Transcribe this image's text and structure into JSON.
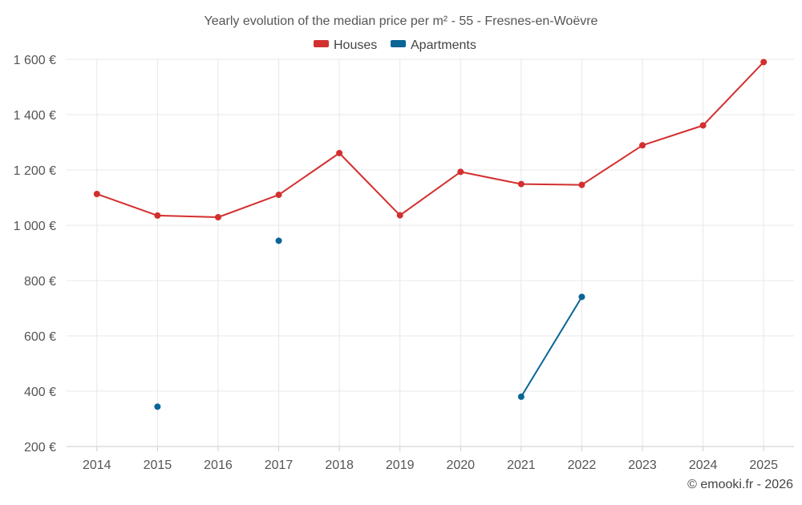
{
  "chart_data": {
    "type": "line",
    "title": "Yearly evolution of the median price per m² - 55 - Fresnes-en-Woëvre",
    "categories": [
      "2014",
      "2015",
      "2016",
      "2017",
      "2018",
      "2019",
      "2020",
      "2021",
      "2022",
      "2023",
      "2024",
      "2025"
    ],
    "ylim": [
      200,
      1600
    ],
    "yticks": [
      200,
      400,
      600,
      800,
      1000,
      1200,
      1400,
      1600
    ],
    "ytick_labels": [
      "200 €",
      "400 €",
      "600 €",
      "800 €",
      "1 000 €",
      "1 200 €",
      "1 400 €",
      "1 600 €"
    ],
    "xlabel": "",
    "ylabel": "",
    "grid": true,
    "legend_position": "top-center",
    "series": [
      {
        "name": "Houses",
        "color": "#d32f2f",
        "values": [
          1113,
          1035,
          1029,
          1110,
          1261,
          1036,
          1193,
          1149,
          1146,
          1289,
          1361,
          1590
        ]
      },
      {
        "name": "Apartments",
        "color": "#0a6496",
        "values": [
          null,
          344,
          null,
          944,
          null,
          null,
          null,
          380,
          741,
          null,
          null,
          null
        ]
      }
    ]
  },
  "credit": "© emooki.fr - 2026"
}
